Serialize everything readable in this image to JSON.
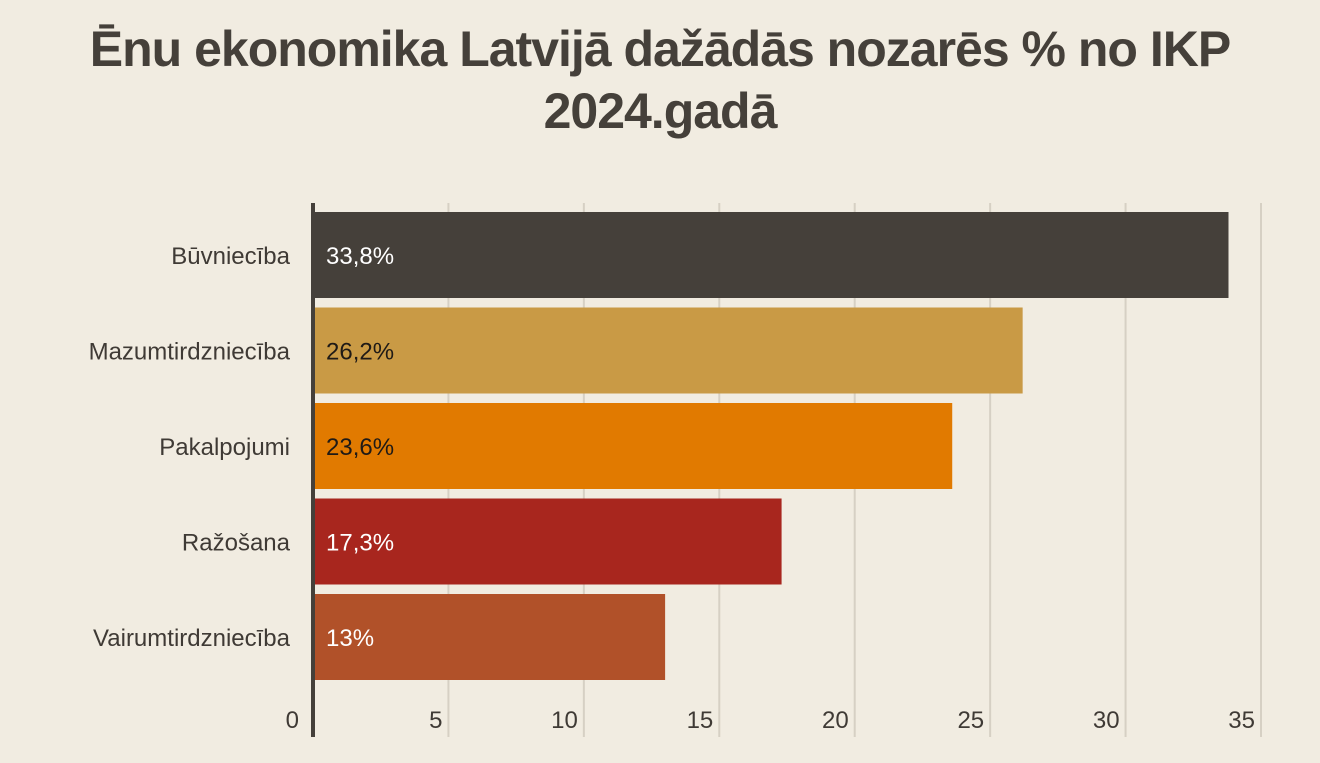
{
  "chart_data": {
    "type": "bar",
    "orientation": "horizontal",
    "title": "Ēnu ekonomika Latvijā dažādās nozarēs % no IKP 2024.gadā",
    "categories": [
      "Būvniecība",
      "Mazumtirdzniecība",
      "Pakalpojumi",
      "Ražošana",
      "Vairumtirdzniecība"
    ],
    "values": [
      33.8,
      26.2,
      23.6,
      17.3,
      13
    ],
    "value_labels": [
      "33,8%",
      "26,2%",
      "23,6%",
      "17,3%",
      "13%"
    ],
    "colors": [
      "#45403a",
      "#c99a45",
      "#e17a00",
      "#a8261e",
      "#b15129"
    ],
    "label_colors": [
      "#ffffff",
      "#1f1a16",
      "#1f1a16",
      "#ffffff",
      "#ffffff"
    ],
    "xlim": [
      0,
      35
    ],
    "xticks": [
      0,
      5,
      10,
      15,
      20,
      25,
      30,
      35
    ],
    "grid": true,
    "xlabel": "",
    "ylabel": ""
  }
}
